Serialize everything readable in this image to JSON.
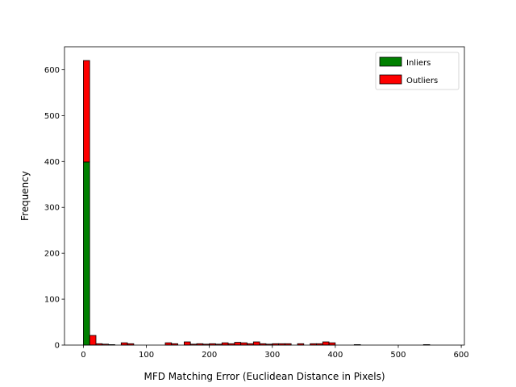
{
  "chart_data": {
    "type": "bar",
    "subtype": "stacked-histogram",
    "title": "",
    "xlabel": "MFD Matching Error (Euclidean Distance in Pixels)",
    "ylabel": "Frequency",
    "xlim": [
      -30,
      605
    ],
    "ylim": [
      0,
      650
    ],
    "xticks": [
      0,
      100,
      200,
      300,
      400,
      500,
      600
    ],
    "yticks": [
      0,
      100,
      200,
      300,
      400,
      500,
      600
    ],
    "bin_width": 9.95,
    "bin_starts": [
      0,
      10,
      20,
      30,
      40,
      60,
      70,
      130,
      140,
      160,
      170,
      180,
      190,
      200,
      210,
      220,
      230,
      240,
      250,
      260,
      270,
      280,
      290,
      300,
      310,
      320,
      340,
      360,
      370,
      380,
      390,
      430,
      540
    ],
    "series": [
      {
        "name": "Inliers",
        "color": "#008000",
        "values": [
          399,
          0,
          0,
          0,
          0,
          0,
          0,
          0,
          0,
          0,
          0,
          0,
          0,
          0,
          0,
          0,
          0,
          0,
          0,
          0,
          0,
          0,
          0,
          0,
          0,
          0,
          0,
          0,
          0,
          0,
          0,
          0,
          0
        ]
      },
      {
        "name": "Outliers",
        "color": "#ff0000",
        "values": [
          221,
          21,
          3,
          2,
          1,
          5,
          3,
          5,
          3,
          7,
          2,
          3,
          2,
          3,
          2,
          5,
          3,
          6,
          5,
          3,
          7,
          3,
          2,
          3,
          3,
          3,
          3,
          3,
          3,
          7,
          5,
          1,
          1
        ]
      }
    ],
    "legend_position": "top-right",
    "grid": false
  }
}
